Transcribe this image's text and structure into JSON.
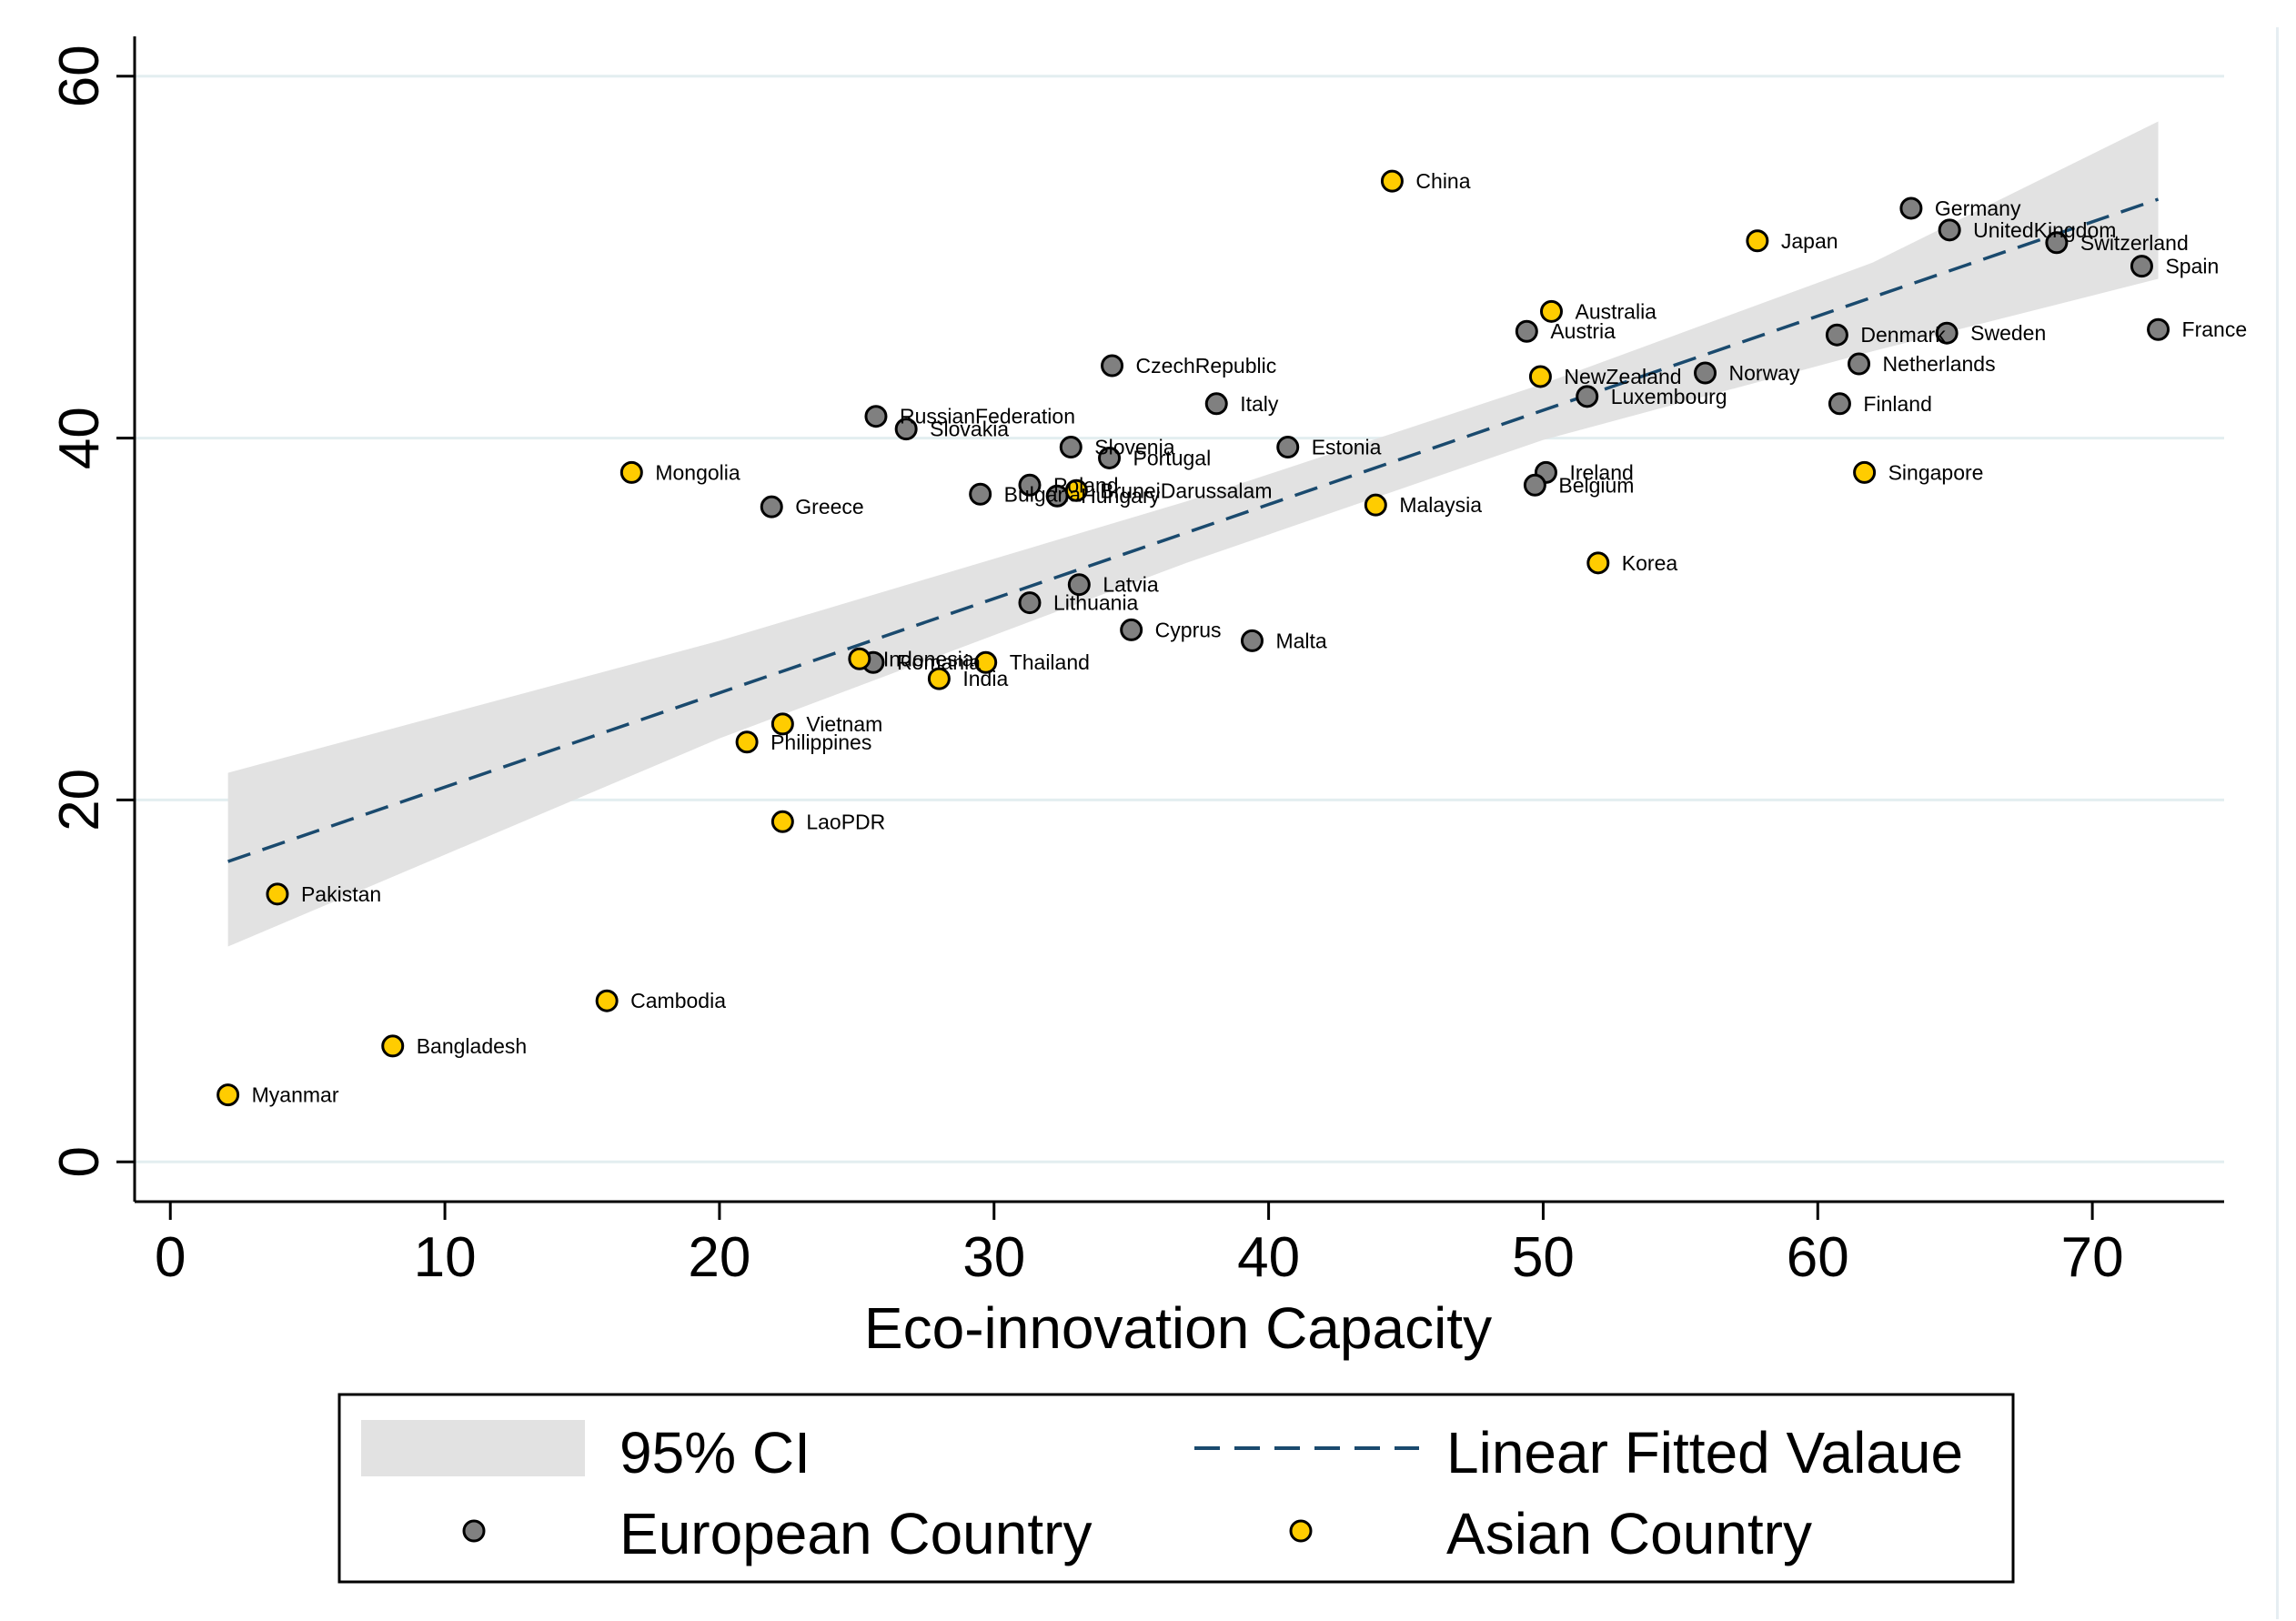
{
  "chart_data": {
    "type": "scatter",
    "title": "",
    "xlabel": "Eco-innovation Capacity",
    "ylabel": "",
    "xlim": [
      -1.3,
      74.8
    ],
    "ylim": [
      -2.2,
      62.2
    ],
    "x_ticks": [
      0,
      10,
      20,
      30,
      40,
      50,
      60,
      70
    ],
    "y_ticks": [
      0,
      20,
      40,
      60
    ],
    "grid": true,
    "series": [
      {
        "name": "European Country",
        "color": "#808080",
        "points": [
          {
            "label": "Germany",
            "x": 63.4,
            "y": 52.7
          },
          {
            "label": "UnitedKingdom",
            "x": 64.8,
            "y": 51.5
          },
          {
            "label": "Switzerland",
            "x": 68.7,
            "y": 50.8
          },
          {
            "label": "Spain",
            "x": 71.8,
            "y": 49.5
          },
          {
            "label": "France",
            "x": 72.4,
            "y": 46.0
          },
          {
            "label": "Denmark",
            "x": 60.7,
            "y": 45.7
          },
          {
            "label": "Sweden",
            "x": 64.7,
            "y": 45.8
          },
          {
            "label": "Netherlands",
            "x": 61.5,
            "y": 44.1
          },
          {
            "label": "Finland",
            "x": 60.8,
            "y": 41.9
          },
          {
            "label": "Norway",
            "x": 55.9,
            "y": 43.6
          },
          {
            "label": "Luxembourg",
            "x": 51.6,
            "y": 42.3
          },
          {
            "label": "Austria",
            "x": 49.4,
            "y": 45.9
          },
          {
            "label": "Ireland",
            "x": 50.1,
            "y": 38.1
          },
          {
            "label": "Belgium",
            "x": 49.7,
            "y": 37.4
          },
          {
            "label": "CzechRepublic",
            "x": 34.3,
            "y": 44.0
          },
          {
            "label": "Italy",
            "x": 38.1,
            "y": 41.9
          },
          {
            "label": "Estonia",
            "x": 40.7,
            "y": 39.5
          },
          {
            "label": "RussianFederation",
            "x": 25.7,
            "y": 41.2
          },
          {
            "label": "Slovakia",
            "x": 26.8,
            "y": 40.5
          },
          {
            "label": "Slovenia",
            "x": 32.8,
            "y": 39.5
          },
          {
            "label": "Portugal",
            "x": 34.2,
            "y": 38.9
          },
          {
            "label": "Poland",
            "x": 31.3,
            "y": 37.4
          },
          {
            "label": "Bulgaria",
            "x": 29.5,
            "y": 36.9
          },
          {
            "label": "Hungary",
            "x": 32.3,
            "y": 36.8
          },
          {
            "label": "Greece",
            "x": 21.9,
            "y": 36.2
          },
          {
            "label": "Latvia",
            "x": 33.1,
            "y": 31.9
          },
          {
            "label": "Lithuania",
            "x": 31.3,
            "y": 30.9
          },
          {
            "label": "Cyprus",
            "x": 35.0,
            "y": 29.4
          },
          {
            "label": "Malta",
            "x": 39.4,
            "y": 28.8
          },
          {
            "label": "Romania",
            "x": 25.6,
            "y": 27.6
          }
        ]
      },
      {
        "name": "Asian Country",
        "color": "#FFCC00",
        "points": [
          {
            "label": "China",
            "x": 44.5,
            "y": 54.2
          },
          {
            "label": "Japan",
            "x": 57.8,
            "y": 50.9
          },
          {
            "label": "Australia",
            "x": 50.3,
            "y": 47.0
          },
          {
            "label": "NewZealand",
            "x": 49.9,
            "y": 43.4
          },
          {
            "label": "Singapore",
            "x": 61.7,
            "y": 38.1
          },
          {
            "label": "BruneiDarussalam",
            "x": 33.0,
            "y": 37.1
          },
          {
            "label": "Malaysia",
            "x": 43.9,
            "y": 36.3
          },
          {
            "label": "Korea",
            "x": 52.0,
            "y": 33.1
          },
          {
            "label": "Mongolia",
            "x": 16.8,
            "y": 38.1
          },
          {
            "label": "Indonesia",
            "x": 25.1,
            "y": 27.8
          },
          {
            "label": "Thailand",
            "x": 29.7,
            "y": 27.6
          },
          {
            "label": "India",
            "x": 28.0,
            "y": 26.7
          },
          {
            "label": "Vietnam",
            "x": 22.3,
            "y": 24.2
          },
          {
            "label": "Philippines",
            "x": 21.0,
            "y": 23.2
          },
          {
            "label": "LaoPDR",
            "x": 22.3,
            "y": 18.8
          },
          {
            "label": "Pakistan",
            "x": 3.9,
            "y": 14.8
          },
          {
            "label": "Cambodia",
            "x": 15.9,
            "y": 8.9
          },
          {
            "label": "Bangladesh",
            "x": 8.1,
            "y": 6.4
          },
          {
            "label": "Myanmar",
            "x": 2.1,
            "y": 3.7
          }
        ]
      }
    ],
    "fit_line": {
      "name": "Linear Fitted Valaue",
      "color": "#1a4a6e",
      "x": [
        2.1,
        72.4
      ],
      "y": [
        16.6,
        53.2
      ]
    },
    "confidence_band": {
      "name": "95% CI",
      "color": "#e2e2e2",
      "x": [
        2.1,
        20,
        37,
        50,
        62,
        72.4
      ],
      "lower": [
        11.9,
        23.4,
        33.1,
        39.9,
        44.8,
        48.8
      ],
      "upper": [
        21.5,
        28.8,
        36.5,
        43.0,
        49.7,
        57.5
      ]
    },
    "legend": {
      "position": "bottom",
      "items": [
        "95% CI",
        "Linear Fitted Valaue",
        "European Country",
        "Asian Country"
      ]
    }
  }
}
